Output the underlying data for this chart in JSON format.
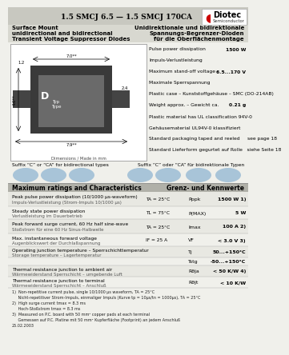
{
  "title": "1.5 SMCJ 6.5 — 1.5 SMCJ 170CA",
  "bg_color": "#f0f0eb",
  "left_title_line1": "Surface Mount",
  "left_title_line2": "unidirectional and bidirectional",
  "left_title_line3": "Transient Voltage Suppressor Diodes",
  "right_title_line1": "Unidirektionale und bidirektionale",
  "right_title_line2": "Spannungs-Begrenzer-Dioden",
  "right_title_line3": "für die Oberflächenmontage",
  "specs": [
    [
      "Pulse power dissipation",
      "1500 W"
    ],
    [
      "Impuls-Verlustleistung",
      ""
    ],
    [
      "Maximum stand-off voltage",
      "6.5...170 V"
    ],
    [
      "Maximale Sperrspannung",
      ""
    ],
    [
      "Plastic case – Kunststoffgehäuse – SMC (DO-214AB)",
      ""
    ],
    [
      "Weight approx. – Gewicht ca.",
      "0.21 g"
    ],
    [
      "Plastic material has UL classification 94V-0",
      ""
    ],
    [
      "Gehäusematerial UL94V-0 klassifiziert",
      ""
    ],
    [
      "Standard packaging taped and reeled     see page 18",
      ""
    ],
    [
      "Standard Lieferform gegurtet auf Rolle   siehe Seite 18",
      ""
    ]
  ],
  "suffix_left": "Suffix “C” or “CA” for bidirectional types",
  "suffix_right": "Suffix “C” oder “CA” für bidirektionale Typen",
  "table_header_left": "Maximum ratings and Characteristics",
  "table_header_right": "Grenz- und Kennwerte",
  "table_rows": [
    {
      "desc1": "Peak pulse power dissipation (10/1000 μs-waveform)",
      "desc2": "Impuls-Verlustleistung (Strom-Impuls 10/1000 μs)",
      "cond": "TA = 25°C",
      "sym": "Pppk",
      "val": "1500 W 1)"
    },
    {
      "desc1": "Steady state power dissipation",
      "desc2": "Verlustleistung im Dauerbetrieb",
      "cond": "TL = 75°C",
      "sym": "P(MAX)",
      "val": "5 W"
    },
    {
      "desc1": "Peak forward surge current, 60 Hz half sine-wave",
      "desc2": "Stoßstrom für eine 60 Hz Sinus-Halbwelle",
      "cond": "TA = 25°C",
      "sym": "Imax",
      "val": "100 A 2)"
    },
    {
      "desc1": "Max. instantaneous forward voltage",
      "desc2": "Augenblickswert der Durchlaßspannung",
      "cond": "IF = 25 A",
      "sym": "VF",
      "val": "< 3.0 V 3)"
    },
    {
      "desc1": "Operating junction temperature – Sperrschichttemperatur",
      "desc2": "Storage temperature – Lagertemperatur",
      "cond": "",
      "sym": "Tj",
      "val": "50...+150°C"
    },
    {
      "desc1": "",
      "desc2": "",
      "cond": "",
      "sym": "Tstg",
      "val": "-50...+150°C"
    },
    {
      "desc1": "Thermal resistance junction to ambient air",
      "desc2": "Wärmewiderstand Sperrschicht – umgebende Luft",
      "cond": "",
      "sym": "Rθja",
      "val": "< 50 K/W 4)"
    },
    {
      "desc1": "Thermal resistance junction to terminal",
      "desc2": "Wärmewiderstand Sperrschicht – Anschluß",
      "cond": "",
      "sym": "Rθjt",
      "val": "< 10 K/W"
    }
  ],
  "footnotes": [
    "1)  Non-repetitive current pulse, single 10/1000 μs waveform, TA = 25°C",
    "     Nicht-repetitiver Strom-Impuls, einmaliger Impuls (Kurve tp = 10μs/tn = 1000μs), TA = 25°C",
    "2)  High surge current tmax = 8.3 ms",
    "     Hoch-Stoßstrom tmax = 8.3 ms",
    "3)  Measured on P.C. board with 50 mm² copper pads at each terminal",
    "     Gemessen auf P.C. Platine mit 50 mm² Kupferfläche (Footprint) an jedem Anschluß",
    "25.02.2003"
  ]
}
